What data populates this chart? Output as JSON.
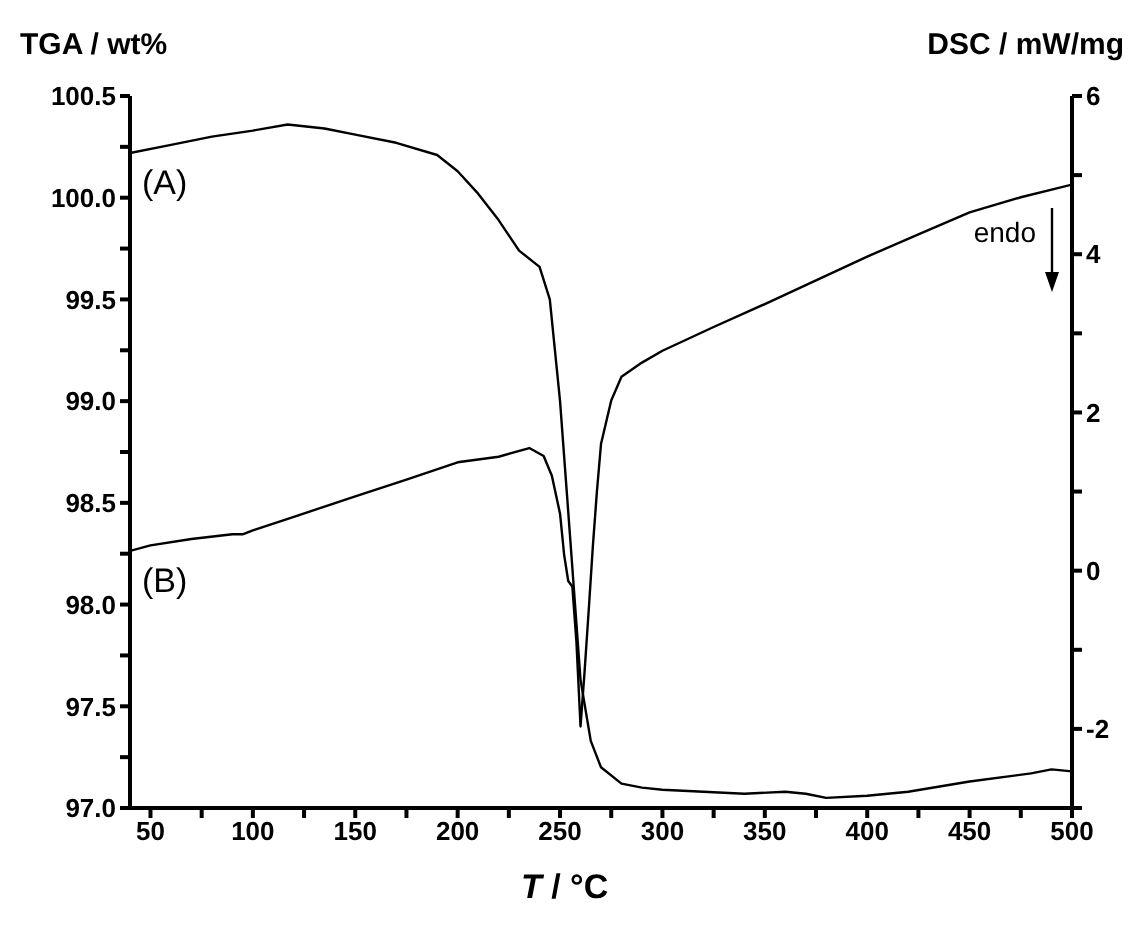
{
  "chart_data": {
    "type": "line",
    "xlabel": "T / °C",
    "ylabel": "TGA / wt%",
    "y2label": "DSC / mW/mg",
    "annotations": [
      "endo"
    ],
    "xlim": [
      40,
      500
    ],
    "xticks": [
      50,
      {
        "value": 75,
        "label": null
      },
      100,
      {
        "value": 125,
        "label": null
      },
      150,
      {
        "value": 175,
        "label": null
      },
      200,
      {
        "value": 225,
        "label": null
      },
      250,
      {
        "value": 275,
        "label": null
      },
      300,
      {
        "value": 325,
        "label": null
      },
      350,
      {
        "value": 375,
        "label": null
      },
      400,
      {
        "value": 425,
        "label": null
      },
      450,
      {
        "value": 475,
        "label": null
      },
      500
    ],
    "ylim": [
      97.0,
      100.5
    ],
    "yticks": [
      {
        "value": 97,
        "label": "97.0"
      },
      {
        "value": 97.25,
        "label": null
      },
      97.5,
      {
        "value": 97.75,
        "label": null
      },
      {
        "value": 98,
        "label": "98.0"
      },
      {
        "value": 98.25,
        "label": null
      },
      98.5,
      {
        "value": 98.75,
        "label": null
      },
      {
        "value": 99,
        "label": "99.0"
      },
      {
        "value": 99.25,
        "label": null
      },
      99.5,
      {
        "value": 99.75,
        "label": null
      },
      {
        "value": 100,
        "label": "100.0"
      },
      {
        "value": 100.25,
        "label": null
      },
      100.5
    ],
    "y2lim": [
      -3,
      6
    ],
    "y2ticks": [
      {
        "value": -3,
        "label": null
      },
      -2,
      {
        "value": -1,
        "label": null
      },
      0,
      {
        "value": 1,
        "label": null
      },
      2,
      {
        "value": 3,
        "label": null
      },
      4,
      {
        "value": 5,
        "label": null
      },
      6
    ],
    "marker": "none",
    "line_style": "solid",
    "series": [
      {
        "name": "(A)",
        "color": "#000000",
        "x": [
          40,
          60,
          80,
          100,
          117,
          135,
          150,
          170,
          190,
          200,
          210,
          220,
          230,
          240,
          245,
          250,
          255,
          260,
          265,
          270,
          280,
          290,
          300,
          320,
          340,
          360,
          370,
          380,
          400,
          420,
          450,
          480,
          490,
          500
        ],
        "values": [
          100.22,
          100.26,
          100.3,
          100.33,
          100.36,
          100.34,
          100.31,
          100.27,
          100.21,
          100.13,
          100.02,
          99.89,
          99.74,
          99.66,
          99.5,
          99.0,
          98.32,
          97.63,
          97.33,
          97.2,
          97.12,
          97.1,
          97.09,
          97.08,
          97.07,
          97.08,
          97.07,
          97.05,
          97.06,
          97.08,
          97.13,
          97.17,
          97.19,
          97.18
        ]
      },
      {
        "name": "(B)",
        "color": "#000000",
        "axis": "y2",
        "x": [
          40,
          50,
          70,
          90,
          95,
          100,
          120,
          150,
          175,
          200,
          220,
          235,
          242,
          246,
          250,
          252,
          254,
          256,
          258,
          260,
          262,
          264,
          266,
          268,
          270,
          275,
          280,
          290,
          300,
          325,
          350,
          375,
          400,
          425,
          450,
          475,
          500
        ],
        "values": [
          0.25,
          0.32,
          0.4,
          0.46,
          0.46,
          0.51,
          0.68,
          0.94,
          1.15,
          1.37,
          1.44,
          1.55,
          1.45,
          1.2,
          0.72,
          0.2,
          -0.13,
          -0.2,
          -0.9,
          -1.97,
          -1.27,
          -0.5,
          0.3,
          1.0,
          1.6,
          2.15,
          2.45,
          2.63,
          2.78,
          3.08,
          3.37,
          3.67,
          3.97,
          4.25,
          4.53,
          4.72,
          4.88
        ]
      }
    ]
  }
}
